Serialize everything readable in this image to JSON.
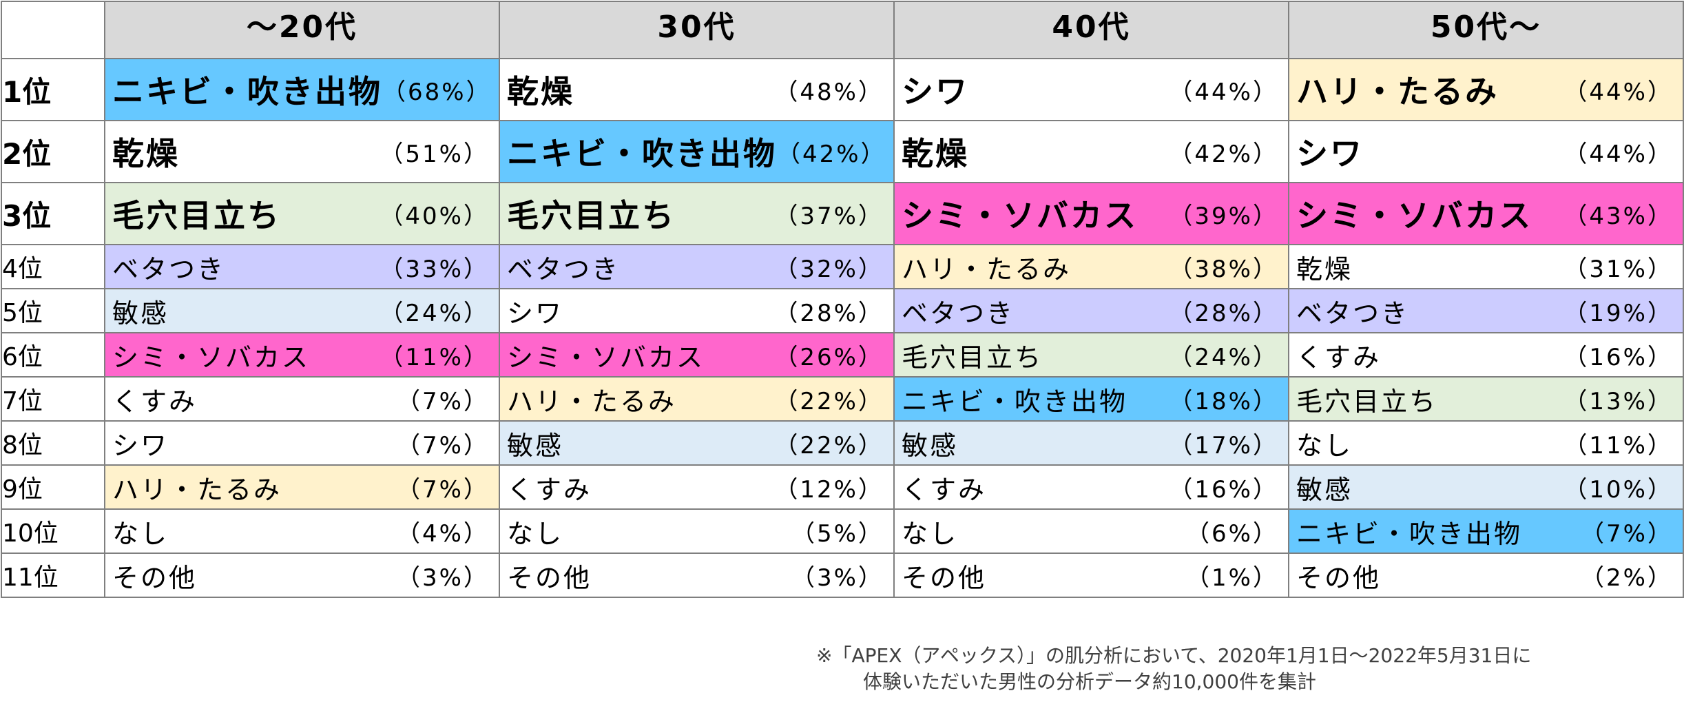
{
  "header": {
    "age_groups": [
      "〜20代",
      "30代",
      "40代",
      "50代〜"
    ]
  },
  "colors": {
    "blue": "#66c8ff",
    "yellow": "#fff2cc",
    "green": "#e2efda",
    "magenta": "#ff66cc",
    "lavender": "#ccccff",
    "lightblue": "#ddebf7",
    "white": "#ffffff"
  },
  "rows": [
    {
      "rank": "1位",
      "size": "big",
      "cells": [
        {
          "label": "ニキビ・吹き出物",
          "pct": "（68%）",
          "color": "#66c8ff"
        },
        {
          "label": "乾燥",
          "pct": "（48%）",
          "color": "#ffffff"
        },
        {
          "label": "シワ",
          "pct": "（44%）",
          "color": "#ffffff"
        },
        {
          "label": "ハリ・たるみ",
          "pct": "（44%）",
          "color": "#fff2cc"
        }
      ]
    },
    {
      "rank": "2位",
      "size": "big",
      "cells": [
        {
          "label": "乾燥",
          "pct": "（51%）",
          "color": "#ffffff"
        },
        {
          "label": "ニキビ・吹き出物",
          "pct": "（42%）",
          "color": "#66c8ff"
        },
        {
          "label": "乾燥",
          "pct": "（42%）",
          "color": "#ffffff"
        },
        {
          "label": "シワ",
          "pct": "（44%）",
          "color": "#ffffff"
        }
      ]
    },
    {
      "rank": "3位",
      "size": "big",
      "cells": [
        {
          "label": "毛穴目立ち",
          "pct": "（40%）",
          "color": "#e2efda"
        },
        {
          "label": "毛穴目立ち",
          "pct": "（37%）",
          "color": "#e2efda"
        },
        {
          "label": "シミ・ソバカス",
          "pct": "（39%）",
          "color": "#ff66cc"
        },
        {
          "label": "シミ・ソバカス",
          "pct": "（43%）",
          "color": "#ff66cc"
        }
      ]
    },
    {
      "rank": "4位",
      "size": "small",
      "cells": [
        {
          "label": "ベタつき",
          "pct": "（33%）",
          "color": "#ccccff"
        },
        {
          "label": "ベタつき",
          "pct": "（32%）",
          "color": "#ccccff"
        },
        {
          "label": "ハリ・たるみ",
          "pct": "（38%）",
          "color": "#fff2cc"
        },
        {
          "label": "乾燥",
          "pct": "（31%）",
          "color": "#ffffff"
        }
      ]
    },
    {
      "rank": "5位",
      "size": "small",
      "cells": [
        {
          "label": "敏感",
          "pct": "（24%）",
          "color": "#ddebf7"
        },
        {
          "label": "シワ",
          "pct": "（28%）",
          "color": "#ffffff"
        },
        {
          "label": "ベタつき",
          "pct": "（28%）",
          "color": "#ccccff"
        },
        {
          "label": "ベタつき",
          "pct": "（19%）",
          "color": "#ccccff"
        }
      ]
    },
    {
      "rank": "6位",
      "size": "small",
      "cells": [
        {
          "label": "シミ・ソバカス",
          "pct": "（11%）",
          "color": "#ff66cc"
        },
        {
          "label": "シミ・ソバカス",
          "pct": "（26%）",
          "color": "#ff66cc"
        },
        {
          "label": "毛穴目立ち",
          "pct": "（24%）",
          "color": "#e2efda"
        },
        {
          "label": "くすみ",
          "pct": "（16%）",
          "color": "#ffffff"
        }
      ]
    },
    {
      "rank": "7位",
      "size": "small",
      "cells": [
        {
          "label": "くすみ",
          "pct": "（7%）",
          "color": "#ffffff"
        },
        {
          "label": "ハリ・たるみ",
          "pct": "（22%）",
          "color": "#fff2cc"
        },
        {
          "label": "ニキビ・吹き出物",
          "pct": "（18%）",
          "color": "#66c8ff"
        },
        {
          "label": "毛穴目立ち",
          "pct": "（13%）",
          "color": "#e2efda"
        }
      ]
    },
    {
      "rank": "8位",
      "size": "small",
      "cells": [
        {
          "label": "シワ",
          "pct": "（7%）",
          "color": "#ffffff"
        },
        {
          "label": "敏感",
          "pct": "（22%）",
          "color": "#ddebf7"
        },
        {
          "label": "敏感",
          "pct": "（17%）",
          "color": "#ddebf7"
        },
        {
          "label": "なし",
          "pct": "（11%）",
          "color": "#ffffff"
        }
      ]
    },
    {
      "rank": "9位",
      "size": "small",
      "cells": [
        {
          "label": "ハリ・たるみ",
          "pct": "（7%）",
          "color": "#fff2cc"
        },
        {
          "label": "くすみ",
          "pct": "（12%）",
          "color": "#ffffff"
        },
        {
          "label": "くすみ",
          "pct": "（16%）",
          "color": "#ffffff"
        },
        {
          "label": "敏感",
          "pct": "（10%）",
          "color": "#ddebf7"
        }
      ]
    },
    {
      "rank": "10位",
      "size": "small",
      "cells": [
        {
          "label": "なし",
          "pct": "（4%）",
          "color": "#ffffff"
        },
        {
          "label": "なし",
          "pct": "（5%）",
          "color": "#ffffff"
        },
        {
          "label": "なし",
          "pct": "（6%）",
          "color": "#ffffff"
        },
        {
          "label": "ニキビ・吹き出物",
          "pct": "（7%）",
          "color": "#66c8ff"
        }
      ]
    },
    {
      "rank": "11位",
      "size": "small",
      "cells": [
        {
          "label": "その他",
          "pct": "（3%）",
          "color": "#ffffff"
        },
        {
          "label": "その他",
          "pct": "（3%）",
          "color": "#ffffff"
        },
        {
          "label": "その他",
          "pct": "（1%）",
          "color": "#ffffff"
        },
        {
          "label": "その他",
          "pct": "（2%）",
          "color": "#ffffff"
        }
      ]
    }
  ],
  "footnote": {
    "line1": "※「APEX（アペックス）」の肌分析において、2020年1月1日〜2022年5月31日に",
    "line2": "体験いただいた男性の分析データ約10,000件を集計"
  }
}
